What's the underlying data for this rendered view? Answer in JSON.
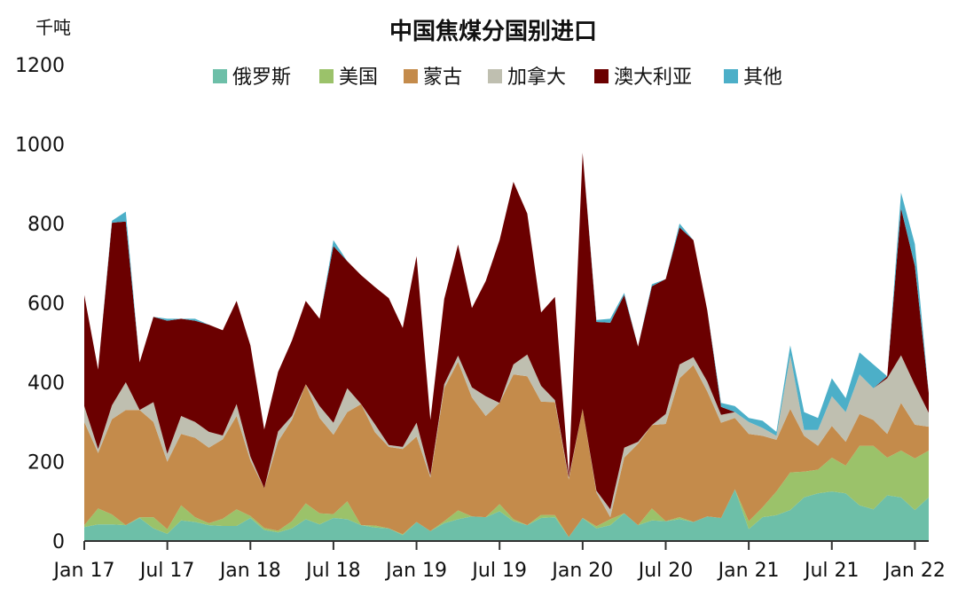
{
  "chart_data": {
    "type": "area",
    "stacked": true,
    "title": "中国焦煤分国别进口",
    "ylabel": "千吨",
    "ylim": [
      0,
      1200
    ],
    "yticks": [
      0,
      200,
      400,
      600,
      800,
      1000,
      1200
    ],
    "grid": false,
    "legend_position": "top",
    "x_tick_labels": [
      {
        "label": "Jan 17",
        "index": 0
      },
      {
        "label": "Jul 17",
        "index": 6
      },
      {
        "label": "Jan 18",
        "index": 12
      },
      {
        "label": "Jul 18",
        "index": 18
      },
      {
        "label": "Jan 19",
        "index": 24
      },
      {
        "label": "Jul 19",
        "index": 30
      },
      {
        "label": "Jan 20",
        "index": 36
      },
      {
        "label": "Jul 20",
        "index": 42
      },
      {
        "label": "Jan 21",
        "index": 48
      },
      {
        "label": "Jul 21",
        "index": 54
      },
      {
        "label": "Jan 22",
        "index": 60
      }
    ],
    "x": [
      "2017-01",
      "2017-02",
      "2017-03",
      "2017-04",
      "2017-05",
      "2017-06",
      "2017-07",
      "2017-08",
      "2017-09",
      "2017-10",
      "2017-11",
      "2017-12",
      "2018-01",
      "2018-02",
      "2018-03",
      "2018-04",
      "2018-05",
      "2018-06",
      "2018-07",
      "2018-08",
      "2018-09",
      "2018-10",
      "2018-11",
      "2018-12",
      "2019-01",
      "2019-02",
      "2019-03",
      "2019-04",
      "2019-05",
      "2019-06",
      "2019-07",
      "2019-08",
      "2019-09",
      "2019-10",
      "2019-11",
      "2019-12",
      "2020-01",
      "2020-02",
      "2020-03",
      "2020-04",
      "2020-05",
      "2020-06",
      "2020-07",
      "2020-08",
      "2020-09",
      "2020-10",
      "2020-11",
      "2020-12",
      "2021-01",
      "2021-02",
      "2021-03",
      "2021-04",
      "2021-05",
      "2021-06",
      "2021-07",
      "2021-08",
      "2021-09",
      "2021-10",
      "2021-11",
      "2021-12",
      "2022-01",
      "2022-02"
    ],
    "series": [
      {
        "name": "俄罗斯",
        "color": "#6dbfa8",
        "values": [
          35,
          42,
          42,
          40,
          58,
          32,
          18,
          52,
          48,
          40,
          38,
          38,
          58,
          28,
          22,
          32,
          55,
          42,
          58,
          55,
          40,
          34,
          32,
          15,
          48,
          25,
          45,
          55,
          62,
          60,
          75,
          50,
          40,
          58,
          60,
          10,
          58,
          32,
          40,
          70,
          40,
          52,
          50,
          55,
          48,
          62,
          58,
          130,
          30,
          60,
          65,
          78,
          110,
          120,
          125,
          120,
          90,
          80,
          115,
          110,
          78,
          110
        ]
      },
      {
        "name": "美国",
        "color": "#9bc26a",
        "values": [
          5,
          40,
          25,
          0,
          2,
          28,
          12,
          38,
          12,
          5,
          18,
          42,
          5,
          5,
          4,
          18,
          40,
          28,
          10,
          45,
          0,
          5,
          0,
          2,
          0,
          0,
          5,
          22,
          0,
          0,
          18,
          5,
          0,
          8,
          5,
          0,
          0,
          5,
          15,
          0,
          0,
          30,
          0,
          5,
          0,
          0,
          0,
          0,
          20,
          25,
          60,
          95,
          65,
          60,
          85,
          70,
          150,
          160,
          95,
          118,
          130,
          118
        ]
      },
      {
        "name": "蒙古",
        "color": "#c48b4b",
        "values": [
          260,
          140,
          240,
          290,
          270,
          240,
          170,
          180,
          200,
          190,
          200,
          235,
          140,
          100,
          225,
          255,
          300,
          240,
          200,
          225,
          305,
          235,
          205,
          215,
          215,
          135,
          335,
          375,
          300,
          255,
          255,
          365,
          375,
          285,
          285,
          145,
          275,
          85,
          5,
          140,
          205,
          210,
          245,
          350,
          395,
          315,
          240,
          180,
          220,
          180,
          130,
          160,
          90,
          60,
          80,
          60,
          80,
          65,
          60,
          120,
          85,
          60
        ]
      },
      {
        "name": "加拿大",
        "color": "#bfbfb0",
        "values": [
          40,
          10,
          35,
          70,
          0,
          50,
          20,
          45,
          40,
          40,
          10,
          30,
          10,
          0,
          25,
          10,
          0,
          30,
          30,
          60,
          0,
          20,
          5,
          5,
          35,
          5,
          10,
          15,
          25,
          50,
          0,
          25,
          55,
          40,
          5,
          5,
          0,
          5,
          20,
          25,
          5,
          0,
          25,
          35,
          20,
          25,
          20,
          15,
          30,
          20,
          10,
          135,
          15,
          40,
          75,
          75,
          100,
          80,
          140,
          120,
          100,
          35
        ]
      },
      {
        "name": "澳大利亚",
        "color": "#6b0000",
        "values": [
          280,
          200,
          460,
          405,
          120,
          215,
          335,
          245,
          255,
          270,
          265,
          260,
          280,
          148,
          150,
          190,
          210,
          220,
          445,
          320,
          325,
          346,
          370,
          300,
          420,
          140,
          215,
          280,
          200,
          290,
          410,
          460,
          355,
          185,
          260,
          5,
          645,
          425,
          470,
          385,
          240,
          350,
          340,
          345,
          295,
          180,
          20,
          0,
          0,
          0,
          0,
          0,
          0,
          0,
          0,
          0,
          0,
          0,
          5,
          370,
          300,
          50
        ]
      },
      {
        "name": "其他",
        "color": "#4cafc8",
        "values": [
          0,
          0,
          5,
          25,
          0,
          0,
          5,
          0,
          5,
          0,
          0,
          0,
          0,
          0,
          0,
          0,
          0,
          0,
          15,
          0,
          0,
          0,
          0,
          0,
          0,
          0,
          0,
          0,
          0,
          0,
          0,
          0,
          0,
          0,
          0,
          0,
          0,
          5,
          10,
          5,
          0,
          5,
          0,
          10,
          0,
          0,
          10,
          15,
          10,
          18,
          10,
          25,
          45,
          30,
          45,
          35,
          55,
          60,
          0,
          40,
          55,
          0
        ]
      }
    ]
  }
}
